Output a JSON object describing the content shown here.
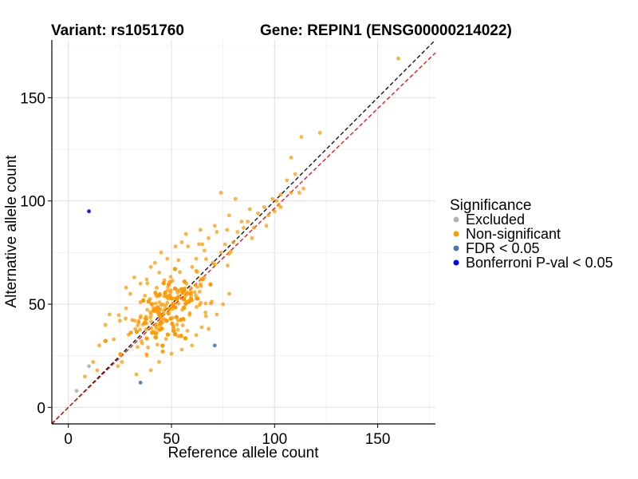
{
  "title_left": "Variant: rs1051760",
  "title_right": "Gene: REPIN1 (ENSG00000214022)",
  "chart_data": {
    "type": "scatter",
    "xlabel": "Reference allele count",
    "ylabel": "Alternative allele count",
    "xlim": [
      -8,
      178
    ],
    "ylim": [
      -8,
      178
    ],
    "xticks": [
      0,
      50,
      100,
      150
    ],
    "yticks": [
      0,
      50,
      100,
      150
    ],
    "x_tick_labels": [
      "0",
      "50",
      "100",
      "150"
    ],
    "y_tick_labels": [
      "0",
      "50",
      "100",
      "150"
    ],
    "grid": true,
    "reference_lines": [
      {
        "name": "identity",
        "slope": 1.0,
        "intercept": 0,
        "color": "#000000",
        "style": "dashed"
      },
      {
        "name": "fit",
        "slope": 0.965,
        "intercept": 0,
        "color": "#ff0000",
        "style": "dashed"
      }
    ],
    "legend": {
      "title": "Significance",
      "placement": "right",
      "entries": [
        {
          "label": "Excluded",
          "color": "#b3b3b3"
        },
        {
          "label": "Non-significant",
          "color": "#ff9900"
        },
        {
          "label": "FDR < 0.05",
          "color": "#4a78b0"
        },
        {
          "label": "Bonferroni P-val < 0.05",
          "color": "#0000ff"
        }
      ]
    },
    "series": [
      {
        "name": "Excluded",
        "color": "#b3b3b3",
        "points": [
          [
            4,
            8
          ],
          [
            10,
            20
          ]
        ]
      },
      {
        "name": "FDR < 0.05",
        "color": "#4a78b0",
        "points": [
          [
            35,
            12
          ],
          [
            71,
            30
          ]
        ]
      },
      {
        "name": "Bonferroni P-val < 0.05",
        "color": "#0000ff",
        "points": [
          [
            10,
            95
          ]
        ]
      },
      {
        "name": "Non-significant",
        "color": "#ff9900",
        "cluster": {
          "count": 1300,
          "center": [
            48,
            48
          ],
          "sd_major": 14,
          "sd_minor": 6.5
        },
        "points": [
          [
            160,
            169
          ],
          [
            122,
            133
          ],
          [
            113,
            131
          ],
          [
            108,
            121
          ],
          [
            110,
            113
          ],
          [
            106,
            110
          ],
          [
            101,
            100
          ],
          [
            99,
            101
          ],
          [
            103,
            103
          ],
          [
            74,
            104
          ],
          [
            81,
            101
          ],
          [
            92,
            94
          ],
          [
            84,
            90
          ],
          [
            78,
            93
          ],
          [
            77,
            86
          ],
          [
            89,
            82
          ],
          [
            96,
            88
          ],
          [
            90,
            87
          ],
          [
            103,
            97
          ],
          [
            108,
            104
          ],
          [
            114,
            106
          ],
          [
            112,
            104
          ],
          [
            65,
            79
          ],
          [
            68,
            82
          ],
          [
            72,
            85
          ],
          [
            62,
            72
          ],
          [
            70,
            70
          ],
          [
            80,
            80
          ],
          [
            55,
            80
          ],
          [
            58,
            78
          ],
          [
            60,
            68
          ],
          [
            74,
            75
          ],
          [
            76,
            79
          ],
          [
            82,
            85
          ],
          [
            85,
            87
          ],
          [
            87,
            90
          ],
          [
            88,
            96
          ],
          [
            95,
            97
          ],
          [
            97,
            93
          ],
          [
            100,
            95
          ],
          [
            102,
            98
          ],
          [
            45,
            75
          ],
          [
            52,
            78
          ],
          [
            40,
            68
          ],
          [
            38,
            62
          ],
          [
            30,
            55
          ],
          [
            28,
            58
          ],
          [
            20,
            45
          ],
          [
            18,
            40
          ],
          [
            22,
            33
          ],
          [
            15,
            30
          ],
          [
            12,
            22
          ],
          [
            14,
            18
          ],
          [
            8,
            15
          ],
          [
            24,
            20
          ],
          [
            26,
            22
          ],
          [
            33,
            16
          ],
          [
            40,
            18
          ],
          [
            44,
            22
          ],
          [
            50,
            26
          ],
          [
            55,
            28
          ],
          [
            60,
            30
          ],
          [
            62,
            35
          ],
          [
            68,
            38
          ],
          [
            72,
            45
          ],
          [
            75,
            50
          ],
          [
            78,
            55
          ],
          [
            35,
            60
          ],
          [
            32,
            63
          ],
          [
            28,
            48
          ],
          [
            25,
            42
          ],
          [
            42,
            70
          ],
          [
            48,
            72
          ],
          [
            66,
            76
          ],
          [
            64,
            86
          ],
          [
            71,
            88
          ],
          [
            57,
            84
          ]
        ]
      }
    ]
  }
}
